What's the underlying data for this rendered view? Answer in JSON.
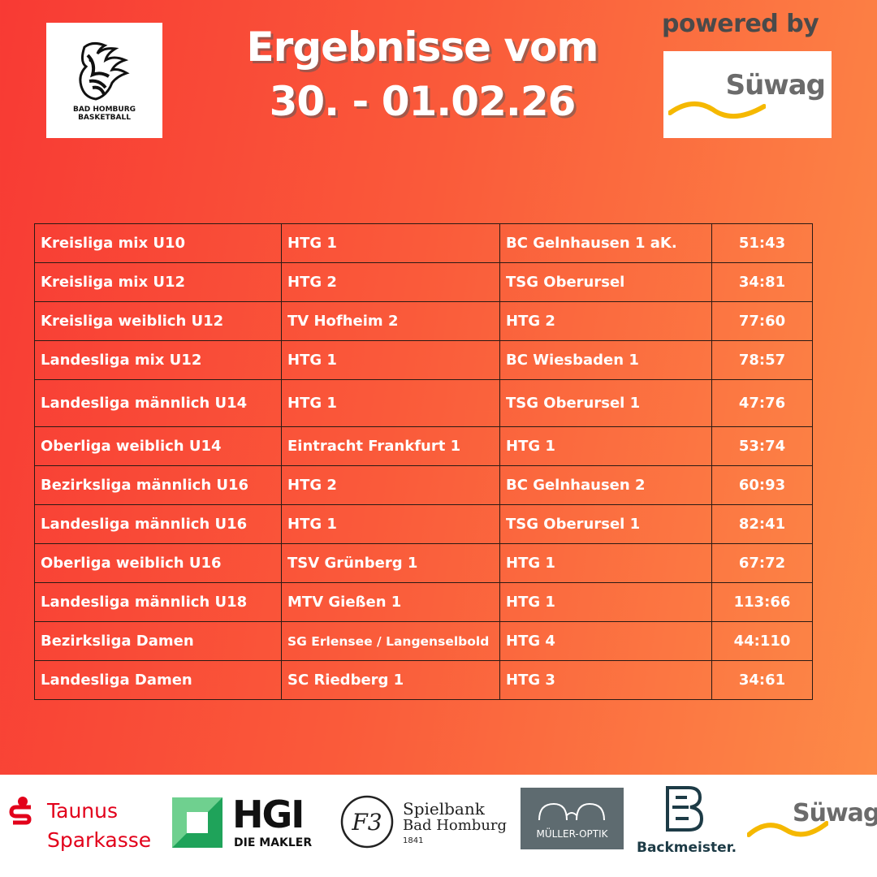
{
  "club_logo": {
    "text_line1": "BAD HOMBURG",
    "text_line2": "BASKETBALL"
  },
  "headline": {
    "line1": "Ergebnisse vom",
    "line2": "30. - 01.02.26"
  },
  "powered_by": {
    "label": "powered by",
    "sponsor": "Süwag"
  },
  "results": [
    {
      "league": "Kreisliga mix U10",
      "home": "HTG 1",
      "away": "BC Gelnhausen 1 aK.",
      "score": "51:43"
    },
    {
      "league": "Kreisliga mix U12",
      "home": "HTG 2",
      "away": "TSG Oberursel",
      "score": "34:81"
    },
    {
      "league": "Kreisliga weiblich U12",
      "home": "TV Hofheim 2",
      "away": "HTG 2",
      "score": "77:60"
    },
    {
      "league": "Landesliga mix U12",
      "home": "HTG 1",
      "away": "BC Wiesbaden 1",
      "score": "78:57"
    },
    {
      "league": "Landesliga männlich U14",
      "home": "HTG 1",
      "away": "TSG Oberursel 1",
      "score": "47:76"
    },
    {
      "league": "Oberliga weiblich U14",
      "home": "Eintracht Frankfurt 1",
      "away": "HTG 1",
      "score": "53:74"
    },
    {
      "league": "Bezirksliga männlich U16",
      "home": "HTG 2",
      "away": "BC Gelnhausen 2",
      "score": "60:93"
    },
    {
      "league": "Landesliga männlich U16",
      "home": "HTG 1",
      "away": "TSG Oberursel 1",
      "score": "82:41"
    },
    {
      "league": "Oberliga weiblich U16",
      "home": "TSV Grünberg 1",
      "away": "HTG 1",
      "score": "67:72"
    },
    {
      "league": "Landesliga männlich U18",
      "home": "MTV Gießen 1",
      "away": "HTG 1",
      "score": "113:66"
    },
    {
      "league": "Bezirksliga Damen",
      "home": "SG Erlensee / Langenselbold",
      "away": "HTG 4",
      "score": "44:110"
    },
    {
      "league": "Landesliga Damen",
      "home": "SC Riedberg 1",
      "away": "HTG 3",
      "score": "34:61"
    }
  ],
  "sponsors": {
    "taunus": {
      "line1": "Taunus",
      "line2": "Sparkasse"
    },
    "hgi": {
      "name": "HGI",
      "sub": "DIE MAKLER"
    },
    "spielbank": {
      "line1": "Spielbank",
      "line2": "Bad Homburg",
      "year": "1841"
    },
    "mueller": {
      "name": "MÜLLER-OPTIK"
    },
    "backmeister": {
      "name": "Backmeister."
    },
    "suewag": {
      "name": "Süwag"
    }
  },
  "colors": {
    "bg_left": "#f83a34",
    "bg_right": "#fd8c48",
    "sparkasse_red": "#e2001a",
    "hgi_green": "#1fa35a",
    "suewag_yellow": "#f5b800"
  }
}
